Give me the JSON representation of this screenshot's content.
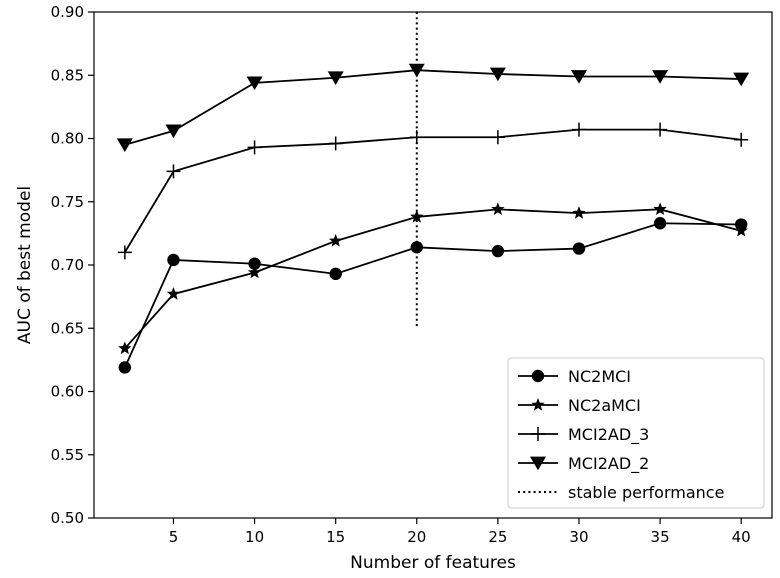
{
  "chart_data": {
    "type": "line",
    "title": "",
    "xlabel": "Number of features",
    "ylabel": "AUC of best model",
    "xlim": [
      0.1,
      41.9
    ],
    "ylim": [
      0.5,
      0.9
    ],
    "x": [
      2,
      5,
      10,
      15,
      20,
      25,
      30,
      35,
      40
    ],
    "xticks": [
      5,
      10,
      15,
      20,
      25,
      30,
      35,
      40
    ],
    "xtick_labels": [
      "5",
      "10",
      "15",
      "20",
      "25",
      "30",
      "35",
      "40"
    ],
    "yticks": [
      0.5,
      0.55,
      0.6,
      0.65,
      0.7,
      0.75,
      0.8,
      0.85,
      0.9
    ],
    "ytick_labels": [
      "0.50",
      "0.55",
      "0.60",
      "0.65",
      "0.70",
      "0.75",
      "0.80",
      "0.85",
      "0.90"
    ],
    "grid": false,
    "legend_position": "bottom-right",
    "series": [
      {
        "name": "NC2MCI",
        "marker": "circle",
        "color": "#000000",
        "values": [
          0.619,
          0.704,
          0.701,
          0.693,
          0.714,
          0.711,
          0.713,
          0.733,
          0.732
        ]
      },
      {
        "name": "NC2aMCI",
        "marker": "star",
        "color": "#000000",
        "values": [
          0.634,
          0.677,
          0.694,
          0.719,
          0.738,
          0.744,
          0.741,
          0.744,
          0.727
        ]
      },
      {
        "name": "MCI2AD_3",
        "marker": "plus",
        "color": "#000000",
        "values": [
          0.71,
          0.774,
          0.793,
          0.796,
          0.801,
          0.801,
          0.807,
          0.807,
          0.799
        ]
      },
      {
        "name": "MCI2AD_2",
        "marker": "triangle-down",
        "color": "#000000",
        "values": [
          0.795,
          0.806,
          0.844,
          0.848,
          0.854,
          0.851,
          0.849,
          0.849,
          0.847
        ]
      }
    ],
    "reference_line": {
      "name": "stable performance",
      "style": "dotted",
      "x": 20,
      "y_range": [
        0.65,
        0.9
      ]
    }
  }
}
